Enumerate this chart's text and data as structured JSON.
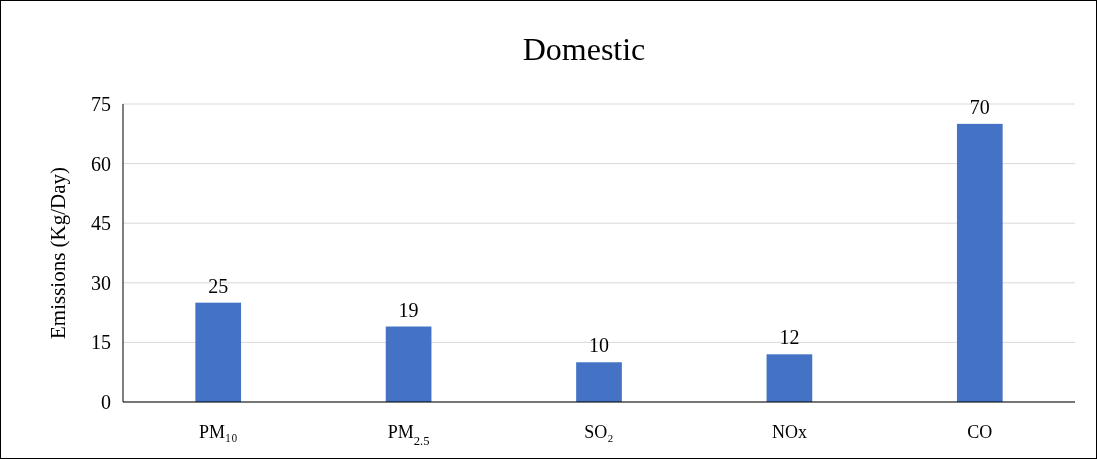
{
  "chart_data": {
    "type": "bar",
    "title": "Domestic",
    "ylabel": "Emissions (Kg/Day)",
    "categories": [
      "PM₁₀",
      "PM$_{2.5}$",
      "SO₂",
      "NOx",
      "CO"
    ],
    "values": [
      25,
      19,
      10,
      12,
      70
    ],
    "color": "#4472c4",
    "ylim": [
      0,
      75
    ],
    "yticks": [
      0,
      15,
      30,
      45,
      60,
      75
    ],
    "grid": "y",
    "data_labels": true
  }
}
